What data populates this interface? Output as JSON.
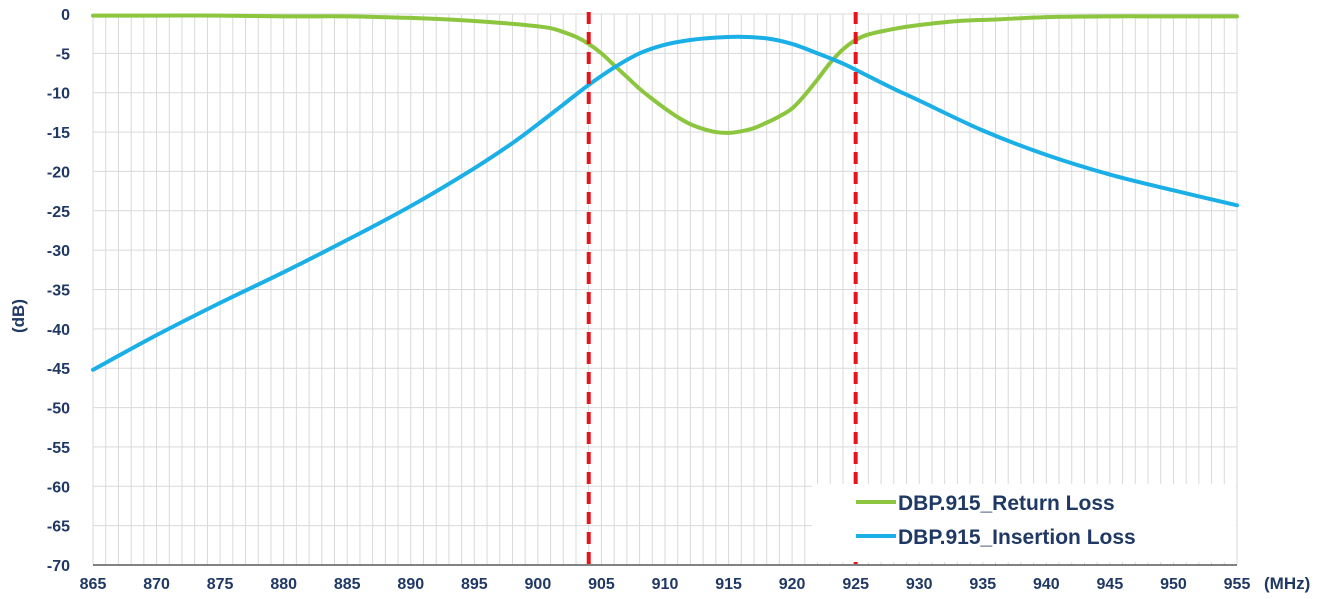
{
  "chart_data": {
    "type": "line",
    "xlabel": "(MHz)",
    "ylabel": "(dB)",
    "xlim": [
      865,
      955
    ],
    "ylim": [
      -70,
      0
    ],
    "x_ticks": [
      865,
      870,
      875,
      880,
      885,
      890,
      895,
      900,
      905,
      910,
      915,
      920,
      925,
      930,
      935,
      940,
      945,
      950,
      955
    ],
    "y_ticks": [
      0,
      -5,
      -10,
      -15,
      -20,
      -25,
      -30,
      -35,
      -40,
      -45,
      -50,
      -55,
      -60,
      -65,
      -70
    ],
    "grid": true,
    "legend_position": "bottom-right",
    "reference_lines": [
      {
        "x": 904,
        "color": "#e8141c",
        "style": "dashed"
      },
      {
        "x": 925,
        "color": "#e8141c",
        "style": "dashed"
      }
    ],
    "series": [
      {
        "name": "DBP.915_Return Loss",
        "color": "#8cc63f",
        "x": [
          865,
          870,
          875,
          880,
          885,
          890,
          893,
          896,
          899,
          901,
          902,
          903,
          904,
          905,
          906,
          907,
          908,
          909,
          910,
          911,
          912,
          913,
          914,
          915,
          916,
          917,
          918,
          919,
          920,
          921,
          922,
          923,
          924,
          925,
          926,
          928,
          930,
          933,
          936,
          940,
          945,
          950,
          955
        ],
        "y": [
          -0.2,
          -0.2,
          -0.2,
          -0.3,
          -0.3,
          -0.5,
          -0.7,
          -1.0,
          -1.4,
          -1.8,
          -2.3,
          -2.9,
          -3.8,
          -5.0,
          -6.5,
          -8.0,
          -9.5,
          -10.8,
          -12.0,
          -13.1,
          -14.0,
          -14.6,
          -15.0,
          -15.1,
          -14.9,
          -14.5,
          -13.8,
          -13.0,
          -12.0,
          -10.3,
          -8.3,
          -6.2,
          -4.5,
          -3.3,
          -2.6,
          -1.9,
          -1.4,
          -0.9,
          -0.7,
          -0.4,
          -0.3,
          -0.3,
          -0.3
        ]
      },
      {
        "name": "DBP.915_Insertion Loss",
        "color": "#1aafe6",
        "x": [
          865,
          870,
          875,
          880,
          885,
          890,
          895,
          898,
          900,
          902,
          904,
          906,
          908,
          910,
          912,
          914,
          916,
          918,
          920,
          922,
          924,
          926,
          928,
          930,
          935,
          940,
          945,
          950,
          955
        ],
        "y": [
          -45.2,
          -40.8,
          -36.7,
          -32.8,
          -28.7,
          -24.4,
          -19.6,
          -16.4,
          -14.0,
          -11.5,
          -9.0,
          -6.8,
          -5.0,
          -3.9,
          -3.3,
          -3.0,
          -2.9,
          -3.1,
          -3.8,
          -5.0,
          -6.3,
          -7.9,
          -9.5,
          -11.0,
          -14.8,
          -17.9,
          -20.4,
          -22.4,
          -24.3
        ]
      }
    ]
  }
}
